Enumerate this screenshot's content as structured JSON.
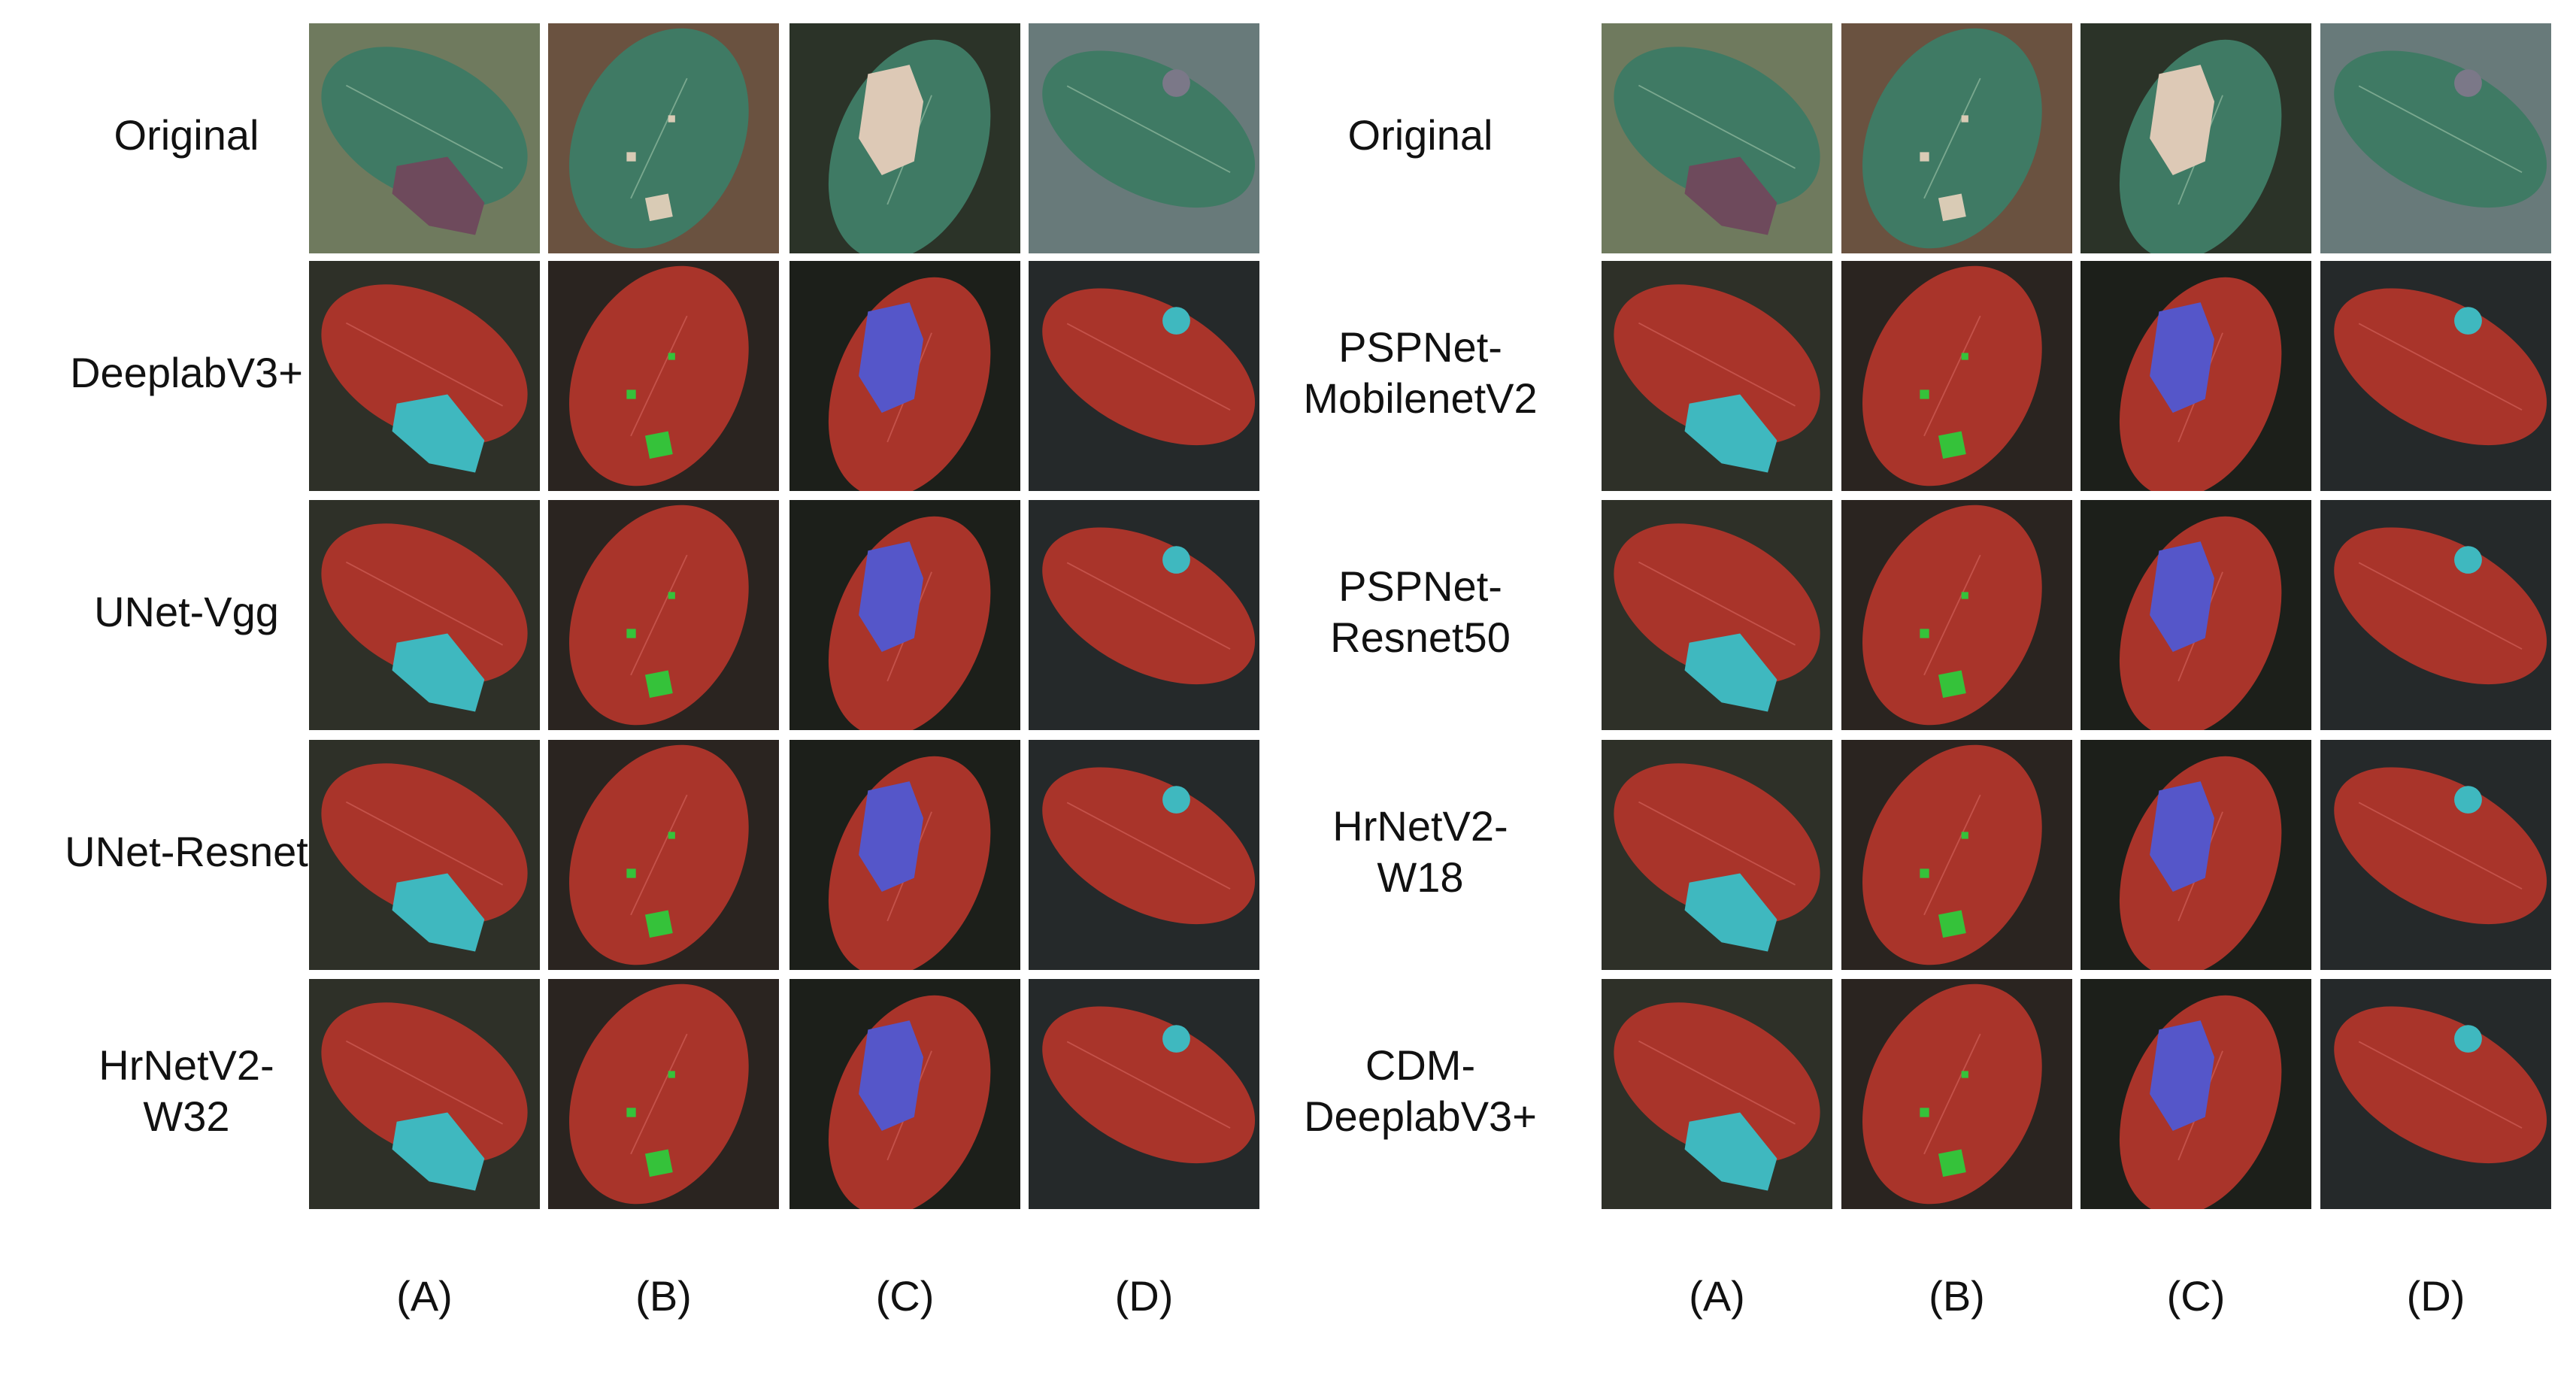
{
  "left_panel": {
    "rows": [
      {
        "label_lines": [
          "Original"
        ]
      },
      {
        "label_lines": [
          "DeeplabV3+"
        ]
      },
      {
        "label_lines": [
          "UNet-Vgg"
        ]
      },
      {
        "label_lines": [
          "UNet-Resnet"
        ]
      },
      {
        "label_lines": [
          "HrNetV2-",
          "W32"
        ]
      }
    ],
    "columns": [
      "(A)",
      "(B)",
      "(C)",
      "(D)"
    ]
  },
  "right_panel": {
    "rows": [
      {
        "label_lines": [
          "Original"
        ]
      },
      {
        "label_lines": [
          "PSPNet-",
          "MobilenetV2"
        ]
      },
      {
        "label_lines": [
          "PSPNet-",
          "Resnet50"
        ]
      },
      {
        "label_lines": [
          "HrNetV2-",
          "W18"
        ]
      },
      {
        "label_lines": [
          "CDM-",
          "DeeplabV3+"
        ]
      }
    ],
    "columns": [
      "(A)",
      "(B)",
      "(C)",
      "(D)"
    ]
  }
}
